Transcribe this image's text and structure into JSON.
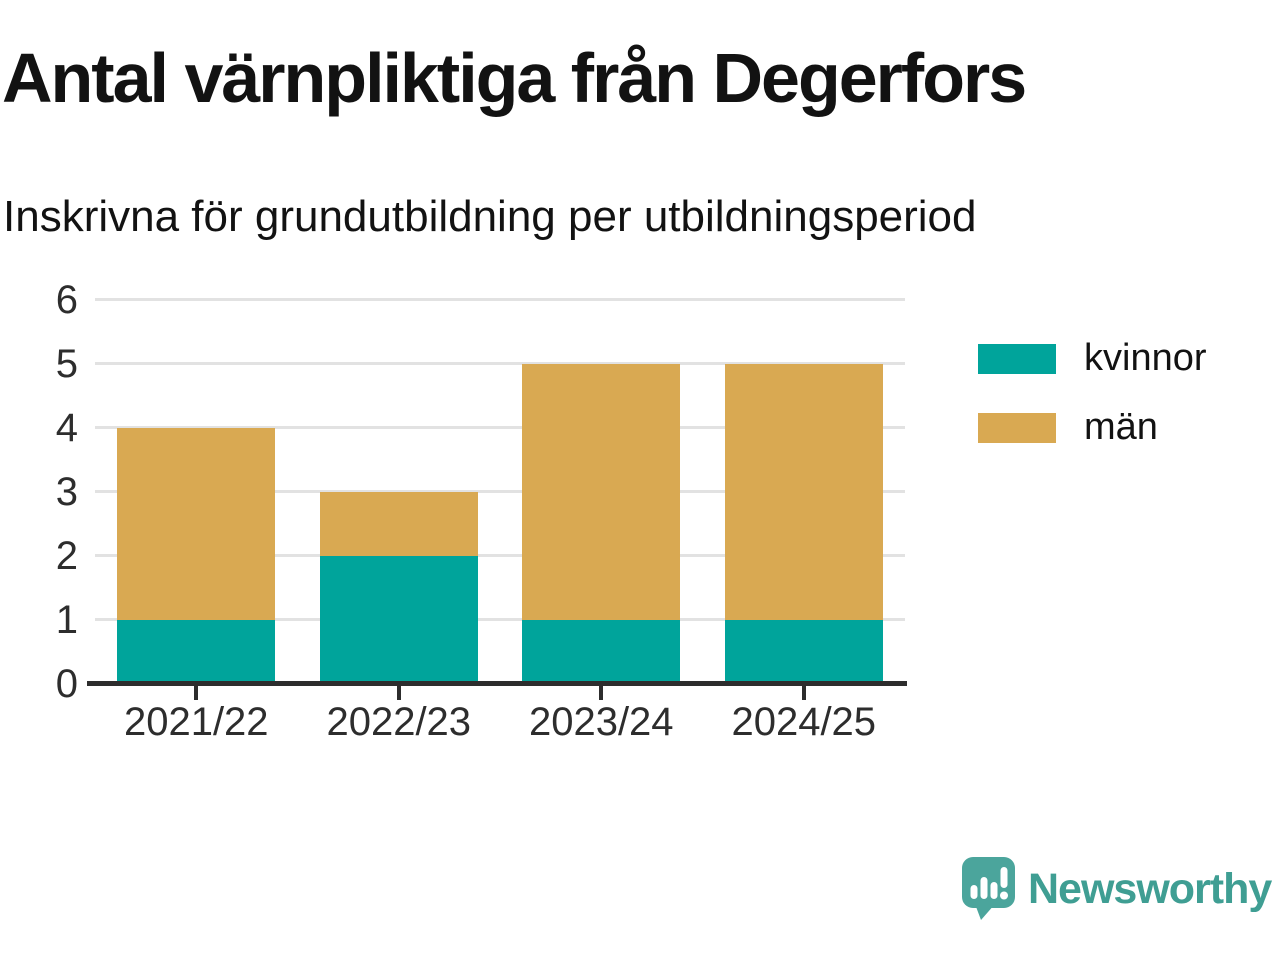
{
  "title": "Antal värnpliktiga från Degerfors",
  "subtitle": "Inskrivna för grundutbildning per utbildningsperiod",
  "chart_data": {
    "type": "bar",
    "stacked": true,
    "title": "Antal värnpliktiga från Degerfors",
    "subtitle": "Inskrivna för grundutbildning per utbildningsperiod",
    "categories": [
      "2021/22",
      "2022/23",
      "2023/24",
      "2024/25"
    ],
    "series": [
      {
        "name": "kvinnor",
        "color": "#00A49B",
        "values": [
          1,
          2,
          1,
          1
        ]
      },
      {
        "name": "män",
        "color": "#D9A952",
        "values": [
          3,
          1,
          4,
          4
        ]
      }
    ],
    "totals": [
      4,
      3,
      5,
      5
    ],
    "xlabel": "",
    "ylabel": "",
    "ylim": [
      0,
      6
    ],
    "yticks": [
      0,
      1,
      2,
      3,
      4,
      5,
      6
    ],
    "grid": true,
    "gridline_color": "#e2e2e2",
    "axis_color": "#2d2d2d",
    "legend_position": "right"
  },
  "logo": {
    "text": "Newsworthy",
    "text_color": "#3F9E93",
    "icon_color": "#4BA59C",
    "icon": "newsworthy-speech-bubble-bar-chart-icon"
  }
}
